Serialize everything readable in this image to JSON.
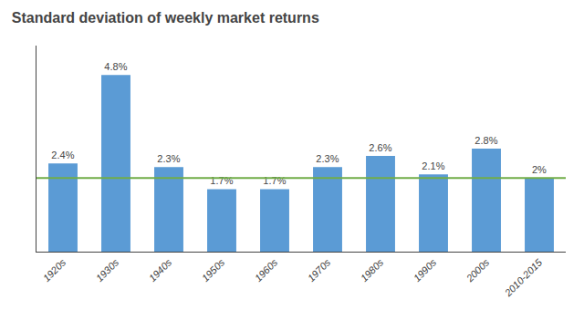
{
  "chart_data": {
    "type": "bar",
    "title": "Standard deviation of weekly market returns",
    "categories": [
      "1920s",
      "1930s",
      "1940s",
      "1950s",
      "1960s",
      "1970s",
      "1980s",
      "1990s",
      "2000s",
      "2010-2015"
    ],
    "values": [
      2.4,
      4.8,
      2.3,
      1.7,
      1.7,
      2.3,
      2.6,
      2.1,
      2.8,
      2.0
    ],
    "value_labels": [
      "2.4%",
      "4.8%",
      "2.3%",
      "1.7%",
      "1.7%",
      "2.3%",
      "2.6%",
      "2.1%",
      "2.8%",
      "2%"
    ],
    "data_labels": true,
    "color": "#5b9bd5",
    "reference_line": {
      "value": 2.0,
      "color": "#70ad47"
    },
    "ylim": [
      0,
      5.6
    ],
    "tick_labels": "x",
    "grid": false
  }
}
